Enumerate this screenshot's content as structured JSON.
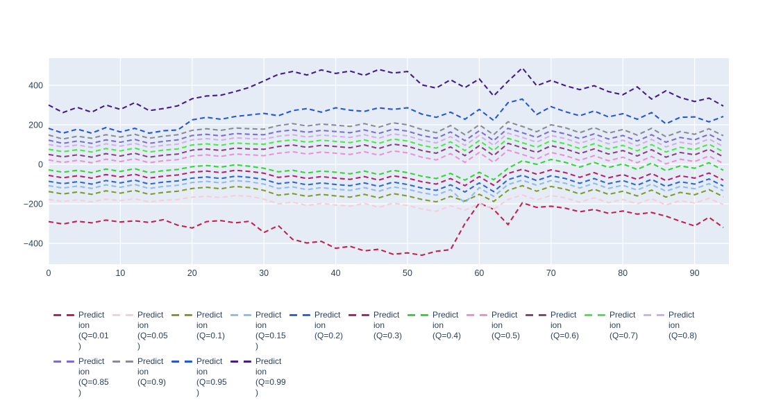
{
  "figure": {
    "page_background": "#ffffff",
    "plot_background": "#e5ecf6",
    "grid_color": "#ffffff",
    "tick_label_color": "#2a3f5f",
    "legend_text_color": "#2a3f5f",
    "legend_position": "bottom"
  },
  "chart_data": {
    "type": "line",
    "title": "",
    "xlabel": "",
    "ylabel": "",
    "line_style": "dash",
    "grid": true,
    "x_ticks": [
      0,
      10,
      20,
      30,
      40,
      50,
      60,
      70,
      80,
      90
    ],
    "y_ticks": [
      -400,
      -200,
      0,
      200,
      400
    ],
    "x_range": [
      0,
      94.8
    ],
    "y_range": [
      -505,
      537
    ],
    "x": [
      0,
      2,
      4,
      6,
      8,
      10,
      12,
      14,
      16,
      18,
      20,
      22,
      24,
      26,
      28,
      30,
      32,
      34,
      36,
      38,
      40,
      42,
      44,
      46,
      48,
      50,
      52,
      54,
      56,
      58,
      60,
      62,
      64,
      66,
      68,
      70,
      72,
      74,
      76,
      78,
      80,
      82,
      84,
      86,
      88,
      90,
      92,
      94
    ],
    "series": [
      {
        "name": "Prediction (Q=0.01)",
        "legend_lines": [
          "Predict",
          "ion",
          "(Q=0.01",
          ")"
        ],
        "color": "#c32052",
        "values": [
          -290,
          -302,
          -288,
          -296,
          -282,
          -292,
          -286,
          -294,
          -280,
          -308,
          -322,
          -290,
          -285,
          -296,
          -288,
          -345,
          -310,
          -380,
          -398,
          -390,
          -425,
          -415,
          -438,
          -430,
          -455,
          -448,
          -460,
          -440,
          -432,
          -300,
          -196,
          -228,
          -305,
          -195,
          -218,
          -212,
          -222,
          -240,
          -228,
          -248,
          -236,
          -252,
          -244,
          -262,
          -288,
          -312,
          -268,
          -320
        ]
      },
      {
        "name": "Prediction (Q=0.05)",
        "legend_lines": [
          "Predict",
          "ion",
          "(Q=0.05",
          ")"
        ],
        "color": "#f9cdd8",
        "values": [
          -178,
          -188,
          -180,
          -190,
          -176,
          -184,
          -174,
          -190,
          -182,
          -178,
          -166,
          -162,
          -168,
          -158,
          -162,
          -176,
          -200,
          -192,
          -208,
          -198,
          -206,
          -212,
          -198,
          -218,
          -196,
          -208,
          -226,
          -238,
          -210,
          -232,
          -200,
          -228,
          -178,
          -155,
          -180,
          -158,
          -170,
          -192,
          -170,
          -194,
          -178,
          -200,
          -174,
          -206,
          -184,
          -196,
          -172,
          -204
        ]
      },
      {
        "name": "Prediction (Q=0.1)",
        "legend_lines": [
          "Predict",
          "ion",
          "(Q=0.1)"
        ],
        "color": "#7d9c2e",
        "values": [
          -138,
          -150,
          -140,
          -152,
          -134,
          -146,
          -132,
          -152,
          -142,
          -136,
          -122,
          -116,
          -124,
          -112,
          -118,
          -132,
          -156,
          -148,
          -162,
          -152,
          -160,
          -166,
          -152,
          -170,
          -148,
          -160,
          -178,
          -190,
          -162,
          -186,
          -152,
          -188,
          -132,
          -108,
          -136,
          -112,
          -126,
          -150,
          -126,
          -152,
          -136,
          -160,
          -130,
          -166,
          -142,
          -154,
          -128,
          -164
        ]
      },
      {
        "name": "Prediction (Q=0.15)",
        "legend_lines": [
          "Predict",
          "ion",
          "(Q=0.15",
          ")"
        ],
        "color": "#8abdf0",
        "values": [
          -108,
          -120,
          -110,
          -122,
          -104,
          -116,
          -102,
          -122,
          -112,
          -106,
          -92,
          -86,
          -94,
          -82,
          -88,
          -100,
          -122,
          -114,
          -128,
          -118,
          -126,
          -132,
          -118,
          -136,
          -114,
          -126,
          -144,
          -156,
          -128,
          -196,
          -118,
          -162,
          -102,
          -80,
          -106,
          -82,
          -96,
          -120,
          -96,
          -122,
          -106,
          -130,
          -100,
          -136,
          -112,
          -124,
          -98,
          -134
        ]
      },
      {
        "name": "Prediction (Q=0.2)",
        "legend_lines": [
          "Predict",
          "ion",
          "(Q=0.2)"
        ],
        "color": "#2b66db",
        "values": [
          -86,
          -98,
          -88,
          -100,
          -82,
          -94,
          -80,
          -100,
          -90,
          -84,
          -70,
          -64,
          -72,
          -60,
          -66,
          -76,
          -98,
          -90,
          -104,
          -94,
          -102,
          -108,
          -94,
          -112,
          -90,
          -102,
          -120,
          -132,
          -104,
          -140,
          -94,
          -138,
          -78,
          -55,
          -82,
          -58,
          -72,
          -96,
          -72,
          -98,
          -82,
          -106,
          -76,
          -112,
          -88,
          -100,
          -74,
          -110
        ]
      },
      {
        "name": "Prediction (Q=0.3)",
        "legend_lines": [
          "Predict",
          "ion",
          "(Q=0.3)"
        ],
        "color": "#b0256e",
        "values": [
          -56,
          -68,
          -58,
          -70,
          -52,
          -64,
          -50,
          -70,
          -60,
          -54,
          -40,
          -34,
          -42,
          -30,
          -36,
          -45,
          -66,
          -58,
          -72,
          -62,
          -70,
          -76,
          -62,
          -80,
          -58,
          -70,
          -88,
          -100,
          -72,
          -108,
          -62,
          -106,
          -46,
          -25,
          -50,
          -28,
          -42,
          -66,
          -42,
          -68,
          -52,
          -76,
          -46,
          -82,
          -58,
          -70,
          -44,
          -80
        ]
      },
      {
        "name": "Prediction (Q=0.4)",
        "legend_lines": [
          "Predict",
          "ion",
          "(Q=0.4)"
        ],
        "color": "#36d436",
        "values": [
          -28,
          -40,
          -30,
          -42,
          -24,
          -36,
          -22,
          -42,
          -32,
          -26,
          -12,
          -6,
          -14,
          -2,
          -10,
          -20,
          -38,
          -30,
          -44,
          -34,
          -40,
          -48,
          -34,
          -52,
          -30,
          -42,
          -60,
          -72,
          -46,
          -80,
          -40,
          -78,
          -20,
          18,
          0,
          25,
          10,
          -14,
          10,
          -16,
          2,
          -26,
          6,
          -32,
          -8,
          -20,
          8,
          -30
        ]
      },
      {
        "name": "Prediction (Q=0.5)",
        "legend_lines": [
          "Predict",
          "ion",
          "(Q=0.5)"
        ],
        "color": "#ee8fd8",
        "values": [
          22,
          10,
          20,
          8,
          26,
          14,
          28,
          8,
          18,
          24,
          42,
          48,
          40,
          52,
          48,
          44,
          56,
          64,
          52,
          62,
          56,
          50,
          64,
          46,
          68,
          58,
          36,
          22,
          54,
          10,
          60,
          10,
          72,
          50,
          26,
          60,
          44,
          20,
          44,
          18,
          36,
          8,
          40,
          2,
          26,
          14,
          42,
          4
        ]
      },
      {
        "name": "Prediction (Q=0.6)",
        "legend_lines": [
          "Predict",
          "ion",
          "(Q=0.6)"
        ],
        "color": "#8b4080",
        "values": [
          50,
          38,
          48,
          36,
          54,
          42,
          56,
          36,
          46,
          52,
          72,
          78,
          70,
          82,
          78,
          76,
          90,
          98,
          86,
          96,
          90,
          84,
          98,
          80,
          102,
          92,
          70,
          56,
          88,
          44,
          94,
          44,
          106,
          84,
          60,
          94,
          78,
          54,
          78,
          52,
          70,
          42,
          74,
          36,
          60,
          48,
          76,
          38
        ]
      },
      {
        "name": "Prediction (Q=0.7)",
        "legend_lines": [
          "Predict",
          "ion",
          "(Q=0.7)"
        ],
        "color": "#4be84b",
        "values": [
          76,
          64,
          74,
          62,
          80,
          68,
          82,
          62,
          72,
          78,
          98,
          104,
          96,
          108,
          104,
          102,
          116,
          124,
          112,
          122,
          116,
          110,
          124,
          106,
          128,
          118,
          96,
          82,
          114,
          70,
          120,
          70,
          132,
          110,
          86,
          120,
          104,
          80,
          104,
          78,
          96,
          68,
          100,
          62,
          86,
          74,
          102,
          64
        ]
      },
      {
        "name": "Prediction (Q=0.8)",
        "legend_lines": [
          "Predict",
          "ion",
          "(Q=0.8)"
        ],
        "color": "#d2aeea",
        "values": [
          100,
          88,
          98,
          86,
          104,
          92,
          106,
          86,
          96,
          102,
          124,
          130,
          122,
          134,
          130,
          128,
          142,
          150,
          138,
          148,
          142,
          136,
          150,
          132,
          154,
          144,
          122,
          108,
          140,
          96,
          146,
          96,
          158,
          136,
          112,
          146,
          130,
          106,
          130,
          104,
          122,
          94,
          126,
          88,
          112,
          100,
          128,
          90
        ]
      },
      {
        "name": "Prediction (Q=0.85)",
        "legend_lines": [
          "Predict",
          "ion",
          "(Q=0.85",
          ")"
        ],
        "color": "#7e6bd9",
        "values": [
          122,
          106,
          118,
          106,
          124,
          112,
          126,
          106,
          116,
          124,
          146,
          152,
          144,
          156,
          152,
          150,
          166,
          174,
          162,
          172,
          166,
          160,
          174,
          156,
          178,
          168,
          146,
          132,
          164,
          120,
          170,
          120,
          182,
          160,
          136,
          170,
          154,
          130,
          154,
          128,
          146,
          118,
          150,
          112,
          136,
          124,
          152,
          115
        ]
      },
      {
        "name": "Prediction (Q=0.9)",
        "legend_lines": [
          "Predict",
          "ion",
          "(Q=0.9)"
        ],
        "color": "#8a8a98",
        "values": [
          148,
          128,
          142,
          132,
          150,
          138,
          152,
          132,
          142,
          150,
          172,
          180,
          172,
          184,
          180,
          178,
          196,
          206,
          194,
          204,
          198,
          192,
          206,
          188,
          210,
          200,
          176,
          160,
          196,
          150,
          200,
          150,
          215,
          192,
          165,
          200,
          185,
          160,
          186,
          158,
          176,
          148,
          182,
          140,
          166,
          152,
          180,
          145
        ]
      },
      {
        "name": "Prediction (Q=0.95)",
        "legend_lines": [
          "Predict",
          "ion",
          "(Q=0.95",
          ")"
        ],
        "color": "#2456d9",
        "values": [
          182,
          158,
          178,
          158,
          186,
          164,
          182,
          158,
          170,
          174,
          225,
          238,
          228,
          242,
          250,
          258,
          246,
          272,
          282,
          264,
          286,
          274,
          268,
          286,
          278,
          286,
          254,
          238,
          264,
          228,
          278,
          222,
          312,
          330,
          252,
          292,
          266,
          246,
          270,
          240,
          256,
          228,
          262,
          205,
          238,
          240,
          215,
          242
        ]
      },
      {
        "name": "Prediction (Q=0.99)",
        "legend_lines": [
          "Predict",
          "ion",
          "(Q=0.99",
          ")"
        ],
        "color": "#431a8f",
        "values": [
          300,
          262,
          288,
          264,
          300,
          278,
          312,
          272,
          282,
          296,
          332,
          346,
          350,
          368,
          390,
          422,
          455,
          470,
          452,
          478,
          460,
          472,
          450,
          480,
          462,
          470,
          402,
          386,
          428,
          388,
          432,
          346,
          420,
          488,
          398,
          425,
          398,
          378,
          398,
          368,
          352,
          392,
          330,
          372,
          338,
          318,
          335,
          295
        ]
      }
    ]
  }
}
